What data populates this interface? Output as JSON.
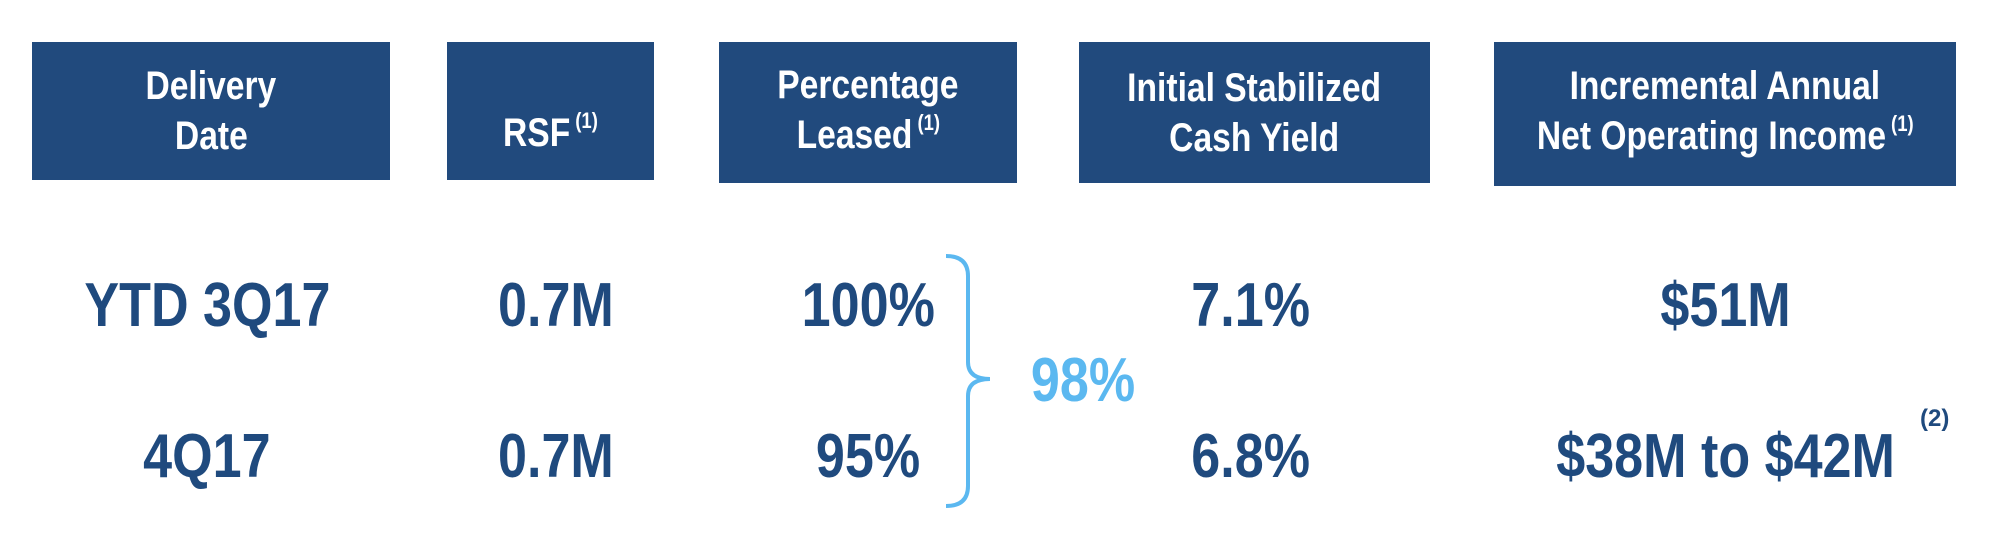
{
  "headers": [
    {
      "lines": [
        "Delivery",
        "Date"
      ]
    },
    {
      "lines": [
        "RSF"
      ],
      "note": "(1)"
    },
    {
      "lines": [
        "Percentage",
        "Leased"
      ],
      "note": "(1)"
    },
    {
      "lines": [
        "Initial Stabilized",
        "Cash Yield"
      ]
    },
    {
      "lines": [
        "Incremental Annual",
        "Net Operating Income"
      ],
      "note": "(1)"
    }
  ],
  "rows": [
    {
      "cells": [
        "YTD 3Q17",
        "0.7M",
        "100%",
        "7.1%",
        "$51M"
      ]
    },
    {
      "cells": [
        "4Q17",
        "0.7M",
        "95%",
        "6.8%",
        "$38M to $42M"
      ],
      "note": "(2)"
    }
  ],
  "bracket_label": "98%"
}
